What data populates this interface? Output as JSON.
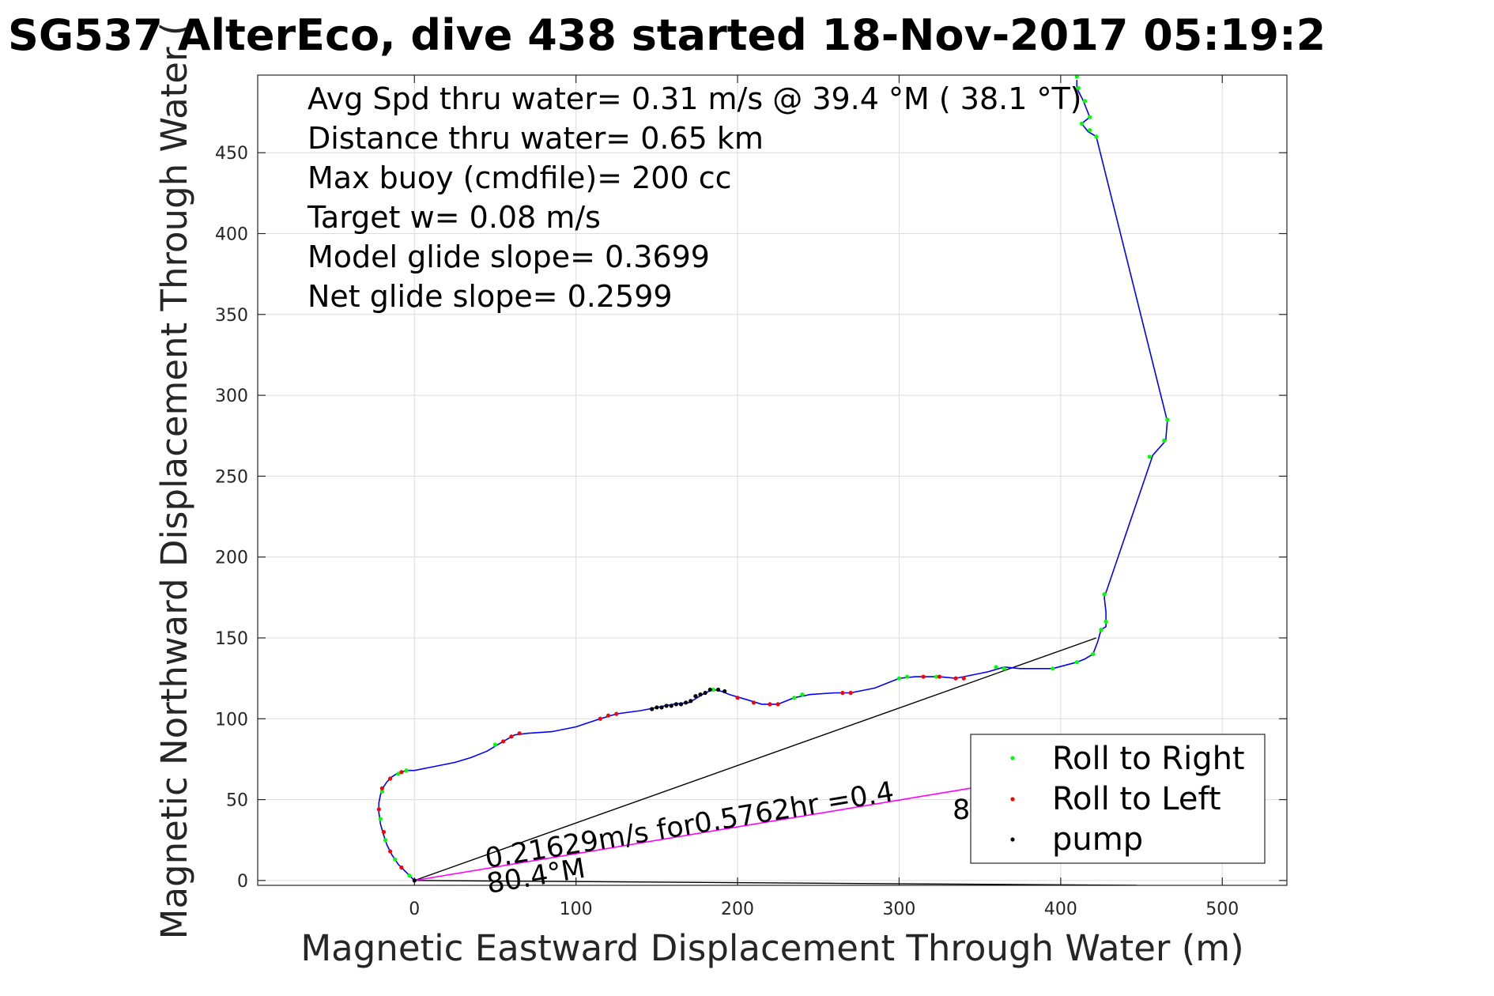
{
  "chart_data": {
    "type": "scatter",
    "title": "SG537 AlterEco, dive 438 started 18-Nov-2017 05:19:2",
    "xlabel": "Magnetic Eastward Displacement Through Water (m)",
    "ylabel": "Magnetic Northward Displacement Through Water (",
    "xlim": [
      -97,
      540
    ],
    "ylim": [
      -3,
      498
    ],
    "xticks": [
      0,
      100,
      200,
      300,
      400,
      500
    ],
    "yticks": [
      0,
      50,
      100,
      150,
      200,
      250,
      300,
      350,
      400,
      450
    ],
    "grid": true,
    "legend_position": "bottom-right",
    "annotations": [
      "Avg Spd thru water=  0.31 m/s @  39.4 °M ( 38.1 °T)",
      "Distance thru water=  0.65 km",
      "Max buoy (cmdfile)= 200 cc",
      "Target w= 0.08 m/s",
      "Model glide slope= 0.3699",
      "Net glide slope= 0.2599"
    ],
    "current_label": "0.21629m/s for0.5762hr =0.4",
    "current_heading_label": "80.4°M",
    "overflow_label_fragment": "8",
    "colors": {
      "track": "#0000ff",
      "roll_right": "#00ff00",
      "roll_left": "#ff0000",
      "pump": "#000000",
      "current_vector": "#ff00ff",
      "net_line": "#000000"
    },
    "track": [
      [
        0,
        0
      ],
      [
        -5,
        5
      ],
      [
        -10,
        10
      ],
      [
        -14,
        16
      ],
      [
        -17,
        22
      ],
      [
        -19,
        28
      ],
      [
        -21,
        35
      ],
      [
        -22,
        42
      ],
      [
        -22,
        48
      ],
      [
        -21,
        53
      ],
      [
        -19,
        58
      ],
      [
        -17,
        61
      ],
      [
        -14,
        64
      ],
      [
        -11,
        66
      ],
      [
        -8,
        67
      ],
      [
        -5,
        68
      ],
      [
        0,
        68
      ],
      [
        10,
        70
      ],
      [
        25,
        73
      ],
      [
        35,
        76
      ],
      [
        45,
        80
      ],
      [
        55,
        86
      ],
      [
        62,
        90
      ],
      [
        70,
        91
      ],
      [
        85,
        92
      ],
      [
        100,
        95
      ],
      [
        115,
        100
      ],
      [
        125,
        103
      ],
      [
        140,
        105
      ],
      [
        150,
        107
      ],
      [
        160,
        109
      ],
      [
        170,
        110
      ],
      [
        175,
        113
      ],
      [
        180,
        116
      ],
      [
        185,
        118
      ],
      [
        190,
        117
      ],
      [
        195,
        115
      ],
      [
        205,
        112
      ],
      [
        215,
        109
      ],
      [
        225,
        109
      ],
      [
        235,
        113
      ],
      [
        245,
        115
      ],
      [
        260,
        116
      ],
      [
        270,
        116
      ],
      [
        285,
        119
      ],
      [
        300,
        125
      ],
      [
        310,
        126
      ],
      [
        325,
        126
      ],
      [
        335,
        125
      ],
      [
        345,
        127
      ],
      [
        355,
        129
      ],
      [
        365,
        132
      ],
      [
        375,
        131
      ],
      [
        385,
        131
      ],
      [
        395,
        131
      ],
      [
        410,
        135
      ],
      [
        415,
        137
      ],
      [
        420,
        140
      ],
      [
        423,
        148
      ],
      [
        425,
        155
      ],
      [
        428,
        157
      ],
      [
        428,
        166
      ],
      [
        427,
        175
      ],
      [
        457,
        263
      ],
      [
        465,
        272
      ],
      [
        466,
        284
      ],
      [
        422,
        460
      ],
      [
        417,
        463
      ],
      [
        413,
        468
      ],
      [
        418,
        472
      ],
      [
        414,
        482
      ],
      [
        410,
        490
      ],
      [
        410,
        495
      ]
    ],
    "series": [
      {
        "name": "Roll to Right",
        "color": "#00ff00",
        "points": [
          [
            -3,
            3
          ],
          [
            -12,
            13
          ],
          [
            -18,
            25
          ],
          [
            -21,
            38
          ],
          [
            -20,
            55
          ],
          [
            -10,
            66
          ],
          [
            -5,
            68
          ],
          [
            50,
            84
          ],
          [
            185,
            118
          ],
          [
            235,
            113
          ],
          [
            240,
            115
          ],
          [
            300,
            125
          ],
          [
            305,
            126
          ],
          [
            323,
            126
          ],
          [
            360,
            132
          ],
          [
            365,
            131
          ],
          [
            395,
            131
          ],
          [
            410,
            135
          ],
          [
            420,
            140
          ],
          [
            425,
            155
          ],
          [
            428,
            160
          ],
          [
            427,
            177
          ],
          [
            455,
            262
          ],
          [
            464,
            272
          ],
          [
            466,
            285
          ],
          [
            422,
            460
          ],
          [
            418,
            464
          ],
          [
            413,
            468
          ],
          [
            418,
            472
          ],
          [
            415,
            482
          ],
          [
            411,
            490
          ],
          [
            410,
            497
          ]
        ]
      },
      {
        "name": "Roll to Left",
        "color": "#ff0000",
        "points": [
          [
            -8,
            8
          ],
          [
            -15,
            18
          ],
          [
            -19,
            30
          ],
          [
            -22,
            44
          ],
          [
            -20,
            57
          ],
          [
            -15,
            63
          ],
          [
            -8,
            67
          ],
          [
            55,
            86
          ],
          [
            60,
            89
          ],
          [
            65,
            91
          ],
          [
            115,
            100
          ],
          [
            120,
            102
          ],
          [
            125,
            103
          ],
          [
            200,
            113
          ],
          [
            210,
            110
          ],
          [
            220,
            109
          ],
          [
            225,
            109
          ],
          [
            265,
            116
          ],
          [
            270,
            116
          ],
          [
            315,
            126
          ],
          [
            325,
            126
          ],
          [
            335,
            125
          ],
          [
            340,
            125
          ]
        ]
      },
      {
        "name": "pump",
        "color": "#000000",
        "points": [
          [
            0,
            0
          ],
          [
            147,
            106
          ],
          [
            150,
            107
          ],
          [
            153,
            107
          ],
          [
            156,
            108
          ],
          [
            159,
            108
          ],
          [
            162,
            109
          ],
          [
            165,
            109
          ],
          [
            168,
            110
          ],
          [
            171,
            111
          ],
          [
            174,
            114
          ],
          [
            177,
            115
          ],
          [
            180,
            116
          ],
          [
            183,
            118
          ],
          [
            188,
            118
          ],
          [
            192,
            117
          ]
        ]
      }
    ],
    "net_line": [
      [
        0,
        0
      ],
      [
        422,
        150
      ]
    ],
    "current_vector": [
      [
        0,
        0
      ],
      [
        350,
        58
      ]
    ],
    "baseline_line": [
      [
        0,
        0
      ],
      [
        447,
        -3
      ]
    ]
  }
}
